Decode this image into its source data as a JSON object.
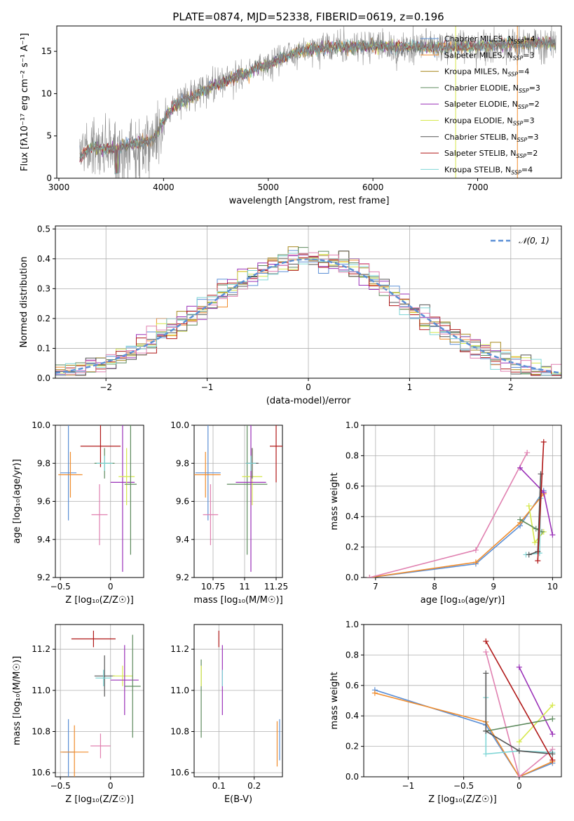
{
  "figure_title": "PLATE=0874, MJD=52338, FIBERID=0619, z=0.196",
  "colors": {
    "Chabrier MILES": "#5b8fd6",
    "Salpeter MILES": "#f08c2c",
    "Kroupa MILES": "#a88a20",
    "Chabrier ELODIE": "#5d8a5d",
    "Salpeter ELODIE": "#9a30b8",
    "Kroupa ELODIE": "#d6e84c",
    "Chabrier STELIB": "#555555",
    "Salpeter STELIB": "#b01818",
    "Kroupa STELIB": "#7fd6d6",
    "extra": "#e080b0",
    "normal": "#5b8fd6",
    "grid": "#b0b0b0",
    "flux_gray": "#808080"
  },
  "chart_data": [
    {
      "id": "spectrum",
      "type": "line",
      "xlabel": "wavelength [Angstrom, rest frame]",
      "ylabel": "Flux [fλ10⁻¹⁷ erg cm⁻² s⁻¹ A⁻¹]",
      "xlim": [
        2980,
        7800
      ],
      "ylim": [
        0,
        18
      ],
      "xticks": [
        3000,
        4000,
        5000,
        6000,
        7000
      ],
      "yticks": [
        0,
        5,
        10,
        15
      ],
      "grid": false,
      "legend_position": "right",
      "legend": [
        {
          "name": "Chabrier MILES",
          "nssp": "4"
        },
        {
          "name": "Salpeter MILES",
          "nssp": "3"
        },
        {
          "name": "Kroupa MILES",
          "nssp": "4"
        },
        {
          "name": "Chabrier ELODIE",
          "nssp": "3"
        },
        {
          "name": "Salpeter ELODIE",
          "nssp": "2"
        },
        {
          "name": "Kroupa ELODIE",
          "nssp": "3"
        },
        {
          "name": "Chabrier STELIB",
          "nssp": "3"
        },
        {
          "name": "Salpeter STELIB",
          "nssp": "2"
        },
        {
          "name": "Kroupa STELIB",
          "nssp": "4"
        }
      ],
      "continuum": {
        "x": [
          3200,
          3300,
          3500,
          3700,
          3900,
          4000,
          4100,
          4300,
          4500,
          4700,
          4900,
          5100,
          5300,
          5600,
          6000,
          6400,
          6800,
          7300,
          7750
        ],
        "y": [
          2.5,
          3.7,
          3.4,
          4.0,
          4.5,
          6.8,
          8.5,
          9.8,
          11.0,
          12.0,
          13.0,
          14.0,
          15.0,
          15.5,
          15.6,
          15.5,
          15.5,
          15.8,
          16.0
        ]
      },
      "vertical_lines": [
        {
          "x": 6790,
          "series": "Kroupa ELODIE"
        },
        {
          "x": 7380,
          "series": "Salpeter MILES"
        }
      ],
      "data_note": ""
    },
    {
      "id": "residuals",
      "type": "histogram",
      "xlabel": "(data-model)/error",
      "ylabel": "Normed distribution",
      "xlim": [
        -2.5,
        2.5
      ],
      "ylim": [
        0,
        0.51
      ],
      "xticks": [
        -2,
        -1,
        0,
        1,
        2
      ],
      "yticks": [
        0.0,
        0.1,
        0.2,
        0.3,
        0.4,
        0.5
      ],
      "grid": true,
      "bin_width": 0.1,
      "normal_label": "𝒩(0, 1)",
      "legend_position": "top-right"
    },
    {
      "id": "age_vs_Z",
      "type": "errorbar",
      "xlabel": "Z [log₁₀(Z/Z☉)]",
      "ylabel": "age  [log₁₀(age/yr)]",
      "xlim": [
        -0.55,
        0.33
      ],
      "ylim": [
        9.2,
        10.0
      ],
      "xticks": [
        -0.5,
        0.0
      ],
      "yticks": [
        9.2,
        9.4,
        9.6,
        9.8,
        10.0
      ],
      "grid": true,
      "points": [
        {
          "series": "Chabrier MILES",
          "x": -0.42,
          "y": 9.75,
          "xerr": 0.08,
          "yerr": 0.25
        },
        {
          "series": "Salpeter MILES",
          "x": -0.4,
          "y": 9.74,
          "xerr": 0.12,
          "yerr": 0.12
        },
        {
          "series": "Salpeter STELIB",
          "x": -0.1,
          "y": 9.89,
          "xerr": 0.2,
          "yerr": 0.11
        },
        {
          "series": "Chabrier ELODIE",
          "x": -0.06,
          "y": 9.8,
          "xerr": 0.1,
          "yerr": 0.08
        },
        {
          "series": "Kroupa STELIB",
          "x": -0.06,
          "y": 9.8,
          "xerr": 0.08,
          "yerr": 0.04
        },
        {
          "series": "extra",
          "x": -0.11,
          "y": 9.53,
          "xerr": 0.08,
          "yerr": 0.16
        },
        {
          "series": "Salpeter ELODIE",
          "x": 0.12,
          "y": 9.7,
          "xerr": 0.12,
          "yerr": 0.47
        },
        {
          "series": "Kroupa ELODIE",
          "x": 0.16,
          "y": 9.73,
          "xerr": 0.08,
          "yerr": 0.15
        },
        {
          "series": "Chabrier ELODIE",
          "x": 0.2,
          "y": 9.69,
          "xerr": 0.06,
          "yerr": 0.37
        }
      ]
    },
    {
      "id": "age_vs_mass",
      "type": "errorbar",
      "xlabel": "mass [log₁₀(M/M☉)]",
      "ylabel": "",
      "xlim": [
        10.6,
        11.3
      ],
      "ylim": [
        9.2,
        10.0
      ],
      "xticks": [
        10.75,
        11.0,
        11.25
      ],
      "yticks": [
        9.2,
        9.4,
        9.6,
        9.8,
        10.0
      ],
      "grid": true,
      "points": [
        {
          "series": "Chabrier MILES",
          "x": 10.71,
          "y": 9.75,
          "xerr": 0.1,
          "yerr": 0.25
        },
        {
          "series": "Salpeter MILES",
          "x": 10.69,
          "y": 9.74,
          "xerr": 0.12,
          "yerr": 0.12
        },
        {
          "series": "extra",
          "x": 10.73,
          "y": 9.53,
          "xerr": 0.06,
          "yerr": 0.16
        },
        {
          "series": "Chabrier ELODIE",
          "x": 11.02,
          "y": 9.69,
          "xerr": 0.16,
          "yerr": 0.37
        },
        {
          "series": "Kroupa ELODIE",
          "x": 11.06,
          "y": 9.73,
          "xerr": 0.08,
          "yerr": 0.15
        },
        {
          "series": "Salpeter ELODIE",
          "x": 11.05,
          "y": 9.7,
          "xerr": 0.12,
          "yerr": 0.47
        },
        {
          "series": "Chabrier STELIB",
          "x": 11.06,
          "y": 9.8,
          "xerr": 0.05,
          "yerr": 0.08
        },
        {
          "series": "Kroupa STELIB",
          "x": 11.05,
          "y": 9.8,
          "xerr": 0.04,
          "yerr": 0.04
        },
        {
          "series": "Salpeter STELIB",
          "x": 11.25,
          "y": 9.89,
          "xerr": 0.05,
          "yerr": 0.19
        }
      ]
    },
    {
      "id": "massweight_vs_age",
      "type": "line",
      "xlabel": "age  [log₁₀(age/yr)]",
      "ylabel": "mass weight",
      "xlim": [
        6.8,
        10.15
      ],
      "ylim": [
        0,
        1.0
      ],
      "xticks": [
        7,
        8,
        9,
        10
      ],
      "yticks": [
        0.0,
        0.2,
        0.4,
        0.6,
        0.8,
        1.0
      ],
      "grid": true,
      "series": [
        {
          "name": "Chabrier MILES",
          "x": [
            6.9,
            8.7,
            9.45,
            9.85
          ],
          "y": [
            0.0,
            0.09,
            0.34,
            0.57
          ]
        },
        {
          "name": "Salpeter MILES",
          "x": [
            6.9,
            8.7,
            9.45,
            9.85
          ],
          "y": [
            0.0,
            0.1,
            0.36,
            0.55
          ]
        },
        {
          "name": "extra",
          "x": [
            6.9,
            8.7,
            9.57
          ],
          "y": [
            0.0,
            0.18,
            0.82
          ]
        },
        {
          "name": "Salpeter ELODIE",
          "x": [
            9.45,
            9.85,
            10.0
          ],
          "y": [
            0.72,
            0.56,
            0.28
          ]
        },
        {
          "name": "Kroupa ELODIE",
          "x": [
            9.6,
            9.7,
            9.85
          ],
          "y": [
            0.47,
            0.23,
            0.3
          ]
        },
        {
          "name": "Chabrier ELODIE",
          "x": [
            9.45,
            9.72,
            9.82
          ],
          "y": [
            0.38,
            0.32,
            0.3
          ]
        },
        {
          "name": "Kroupa STELIB",
          "x": [
            9.55,
            9.78,
            9.8
          ],
          "y": [
            0.15,
            0.16,
            0.52
          ]
        },
        {
          "name": "Chabrier STELIB",
          "x": [
            9.6,
            9.75,
            9.8
          ],
          "y": [
            0.15,
            0.17,
            0.68
          ]
        },
        {
          "name": "Salpeter STELIB",
          "x": [
            9.75,
            9.85
          ],
          "y": [
            0.11,
            0.89
          ]
        }
      ]
    },
    {
      "id": "mass_vs_Z",
      "type": "errorbar",
      "xlabel": "Z [log₁₀(Z/Z☉)]",
      "ylabel": "mass [log₁₀(M/M☉)]",
      "xlim": [
        -0.55,
        0.33
      ],
      "ylim": [
        10.58,
        11.32
      ],
      "xticks": [
        -0.5,
        0.0
      ],
      "yticks": [
        10.6,
        10.8,
        11.0,
        11.2
      ],
      "grid": true,
      "points": [
        {
          "series": "Chabrier MILES",
          "x": -0.42,
          "y": 10.7,
          "xerr": 0.06,
          "yerr": 0.16
        },
        {
          "series": "Salpeter MILES",
          "x": -0.36,
          "y": 10.7,
          "xerr": 0.14,
          "yerr": 0.13
        },
        {
          "series": "extra",
          "x": -0.1,
          "y": 10.73,
          "xerr": 0.1,
          "yerr": 0.06
        },
        {
          "series": "Salpeter STELIB",
          "x": -0.17,
          "y": 11.25,
          "xerr": 0.22,
          "yerr": 0.04
        },
        {
          "series": "Chabrier STELIB",
          "x": -0.06,
          "y": 11.07,
          "xerr": 0.1,
          "yerr": 0.1
        },
        {
          "series": "Kroupa STELIB",
          "x": -0.07,
          "y": 11.06,
          "xerr": 0.08,
          "yerr": 0.04
        },
        {
          "series": "Kroupa ELODIE",
          "x": 0.12,
          "y": 11.07,
          "xerr": 0.1,
          "yerr": 0.05
        },
        {
          "series": "Salpeter ELODIE",
          "x": 0.14,
          "y": 11.05,
          "xerr": 0.14,
          "yerr": 0.17
        },
        {
          "series": "Chabrier ELODIE",
          "x": 0.22,
          "y": 11.02,
          "xerr": 0.08,
          "yerr": 0.25
        }
      ]
    },
    {
      "id": "mass_vs_ebv",
      "type": "errorbar",
      "xlabel": "E(B-V)",
      "ylabel": "",
      "xlim": [
        0.03,
        0.28
      ],
      "ylim": [
        10.58,
        11.32
      ],
      "xticks": [
        0.1,
        0.2
      ],
      "yticks": [
        10.6,
        10.8,
        11.0,
        11.2
      ],
      "grid": true,
      "points": [
        {
          "series": "Chabrier ELODIE",
          "x": 0.05,
          "y": 10.96,
          "xerr": 0.0,
          "yerr": 0.19
        },
        {
          "series": "Kroupa ELODIE",
          "x": 0.05,
          "y": 11.07,
          "xerr": 0.0,
          "yerr": 0.05
        },
        {
          "series": "Salpeter STELIB",
          "x": 0.1,
          "y": 11.25,
          "xerr": 0.0,
          "yerr": 0.04
        },
        {
          "series": "Salpeter ELODIE",
          "x": 0.11,
          "y": 11.05,
          "xerr": 0.0,
          "yerr": 0.17
        },
        {
          "series": "Kroupa STELIB",
          "x": 0.11,
          "y": 11.06,
          "xerr": 0.0,
          "yerr": 0.04
        },
        {
          "series": "Salpeter MILES",
          "x": 0.265,
          "y": 10.74,
          "xerr": 0.0,
          "yerr": 0.11
        },
        {
          "series": "Chabrier MILES",
          "x": 0.272,
          "y": 10.76,
          "xerr": 0.0,
          "yerr": 0.1
        }
      ]
    },
    {
      "id": "massweight_vs_Z",
      "type": "line",
      "xlabel": "Z [log₁₀(Z/Z☉)]",
      "ylabel": "mass weight",
      "xlim": [
        -1.4,
        0.38
      ],
      "ylim": [
        0,
        1.0
      ],
      "xticks": [
        -1.0,
        -0.5,
        0.0
      ],
      "yticks": [
        0.0,
        0.2,
        0.4,
        0.6,
        0.8,
        1.0
      ],
      "grid": true,
      "series": [
        {
          "name": "Chabrier MILES",
          "x": [
            -1.3,
            -0.3,
            0.0,
            0.3
          ],
          "y": [
            0.57,
            0.34,
            0.0,
            0.09
          ]
        },
        {
          "name": "Salpeter MILES",
          "x": [
            -1.3,
            -0.3,
            0.0,
            0.3
          ],
          "y": [
            0.55,
            0.36,
            0.0,
            0.1
          ]
        },
        {
          "name": "extra",
          "x": [
            -0.3,
            0.0,
            0.3
          ],
          "y": [
            0.82,
            0.0,
            0.18
          ]
        },
        {
          "name": "Salpeter ELODIE",
          "x": [
            0.0,
            0.3
          ],
          "y": [
            0.72,
            0.28
          ]
        },
        {
          "name": "Kroupa ELODIE",
          "x": [
            0.0,
            0.3
          ],
          "y": [
            0.23,
            0.47
          ]
        },
        {
          "name": "Chabrier ELODIE",
          "x": [
            -0.3,
            0.3
          ],
          "y": [
            0.3,
            0.38
          ]
        },
        {
          "name": "Kroupa STELIB",
          "x": [
            -0.3,
            -0.3,
            0.0,
            0.3
          ],
          "y": [
            0.52,
            0.15,
            0.17,
            0.16
          ]
        },
        {
          "name": "Chabrier STELIB",
          "x": [
            -0.3,
            -0.3,
            0.0,
            0.3
          ],
          "y": [
            0.68,
            0.3,
            0.17,
            0.15
          ]
        },
        {
          "name": "Salpeter STELIB",
          "x": [
            -0.3,
            0.3
          ],
          "y": [
            0.89,
            0.11
          ]
        }
      ]
    }
  ]
}
